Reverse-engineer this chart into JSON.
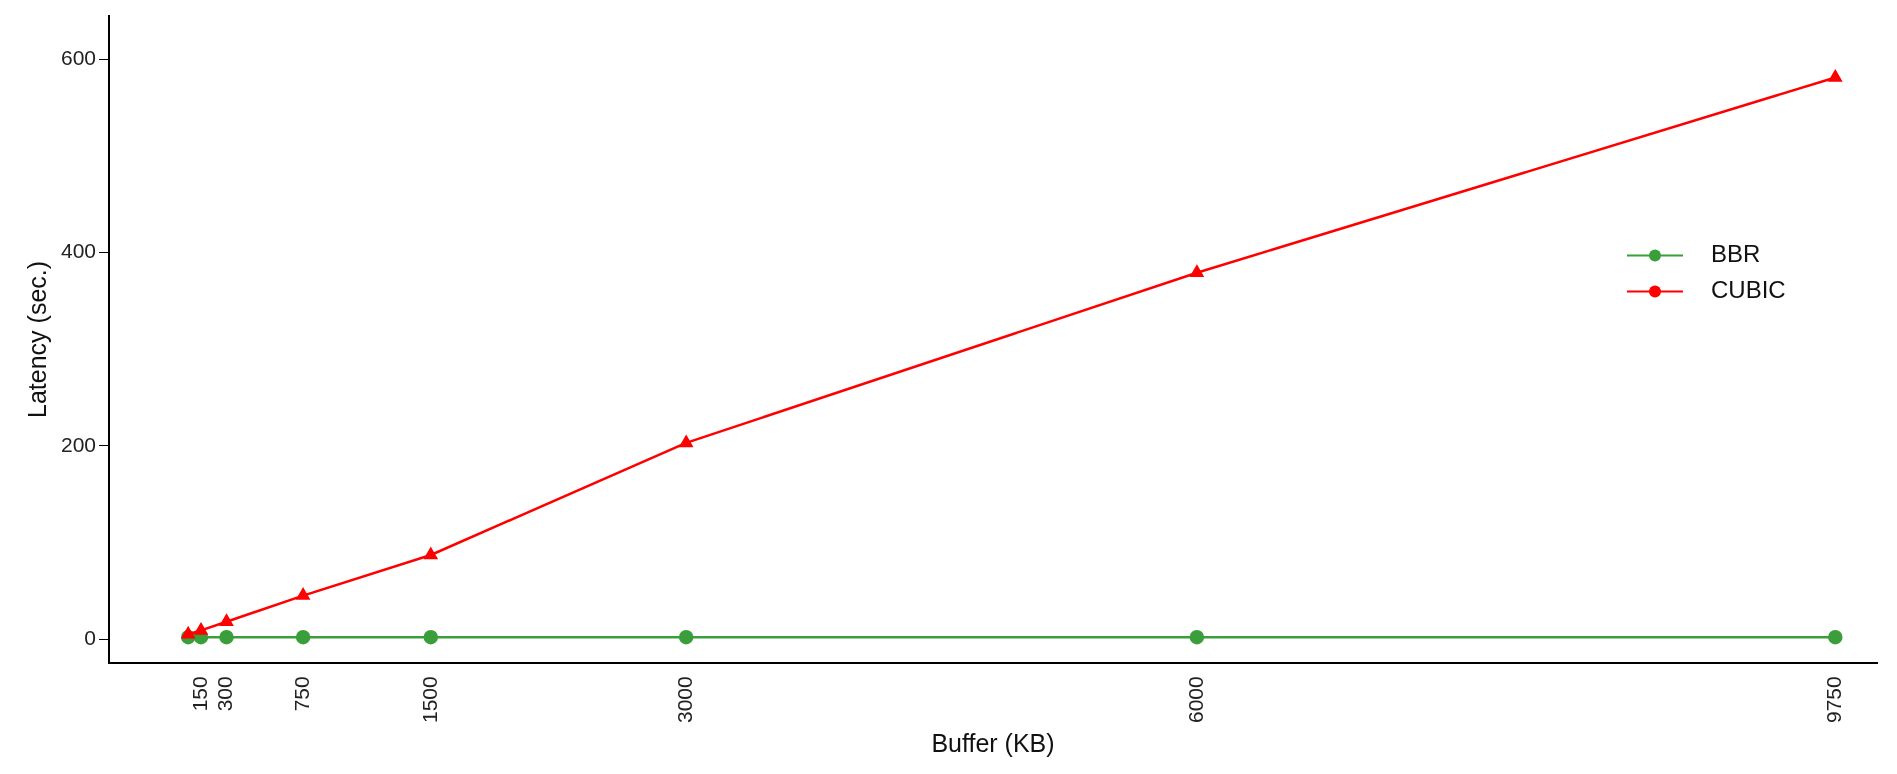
{
  "chart_data": {
    "type": "line",
    "xlabel": "Buffer (KB)",
    "ylabel": "Latency (sec.)",
    "x": [
      75,
      150,
      300,
      750,
      1500,
      3000,
      6000,
      9750
    ],
    "xlim": [
      -390,
      9995
    ],
    "xticks": [
      150,
      300,
      750,
      1500,
      3000,
      6000,
      9750
    ],
    "ylim": [
      -25,
      645
    ],
    "yticks": [
      0,
      200,
      400,
      600
    ],
    "grid": false,
    "legend": "right",
    "marker": "circle",
    "line_style": "solid",
    "series": [
      {
        "name": "BBR",
        "color": "#3a9e3a",
        "values": [
          2,
          2,
          2,
          2,
          2,
          2,
          2,
          2
        ]
      },
      {
        "name": "CUBIC",
        "color": "#ff0000",
        "marker": "triangle",
        "values": [
          5,
          9,
          18,
          45,
          87,
          203,
          379,
          581
        ]
      }
    ]
  }
}
